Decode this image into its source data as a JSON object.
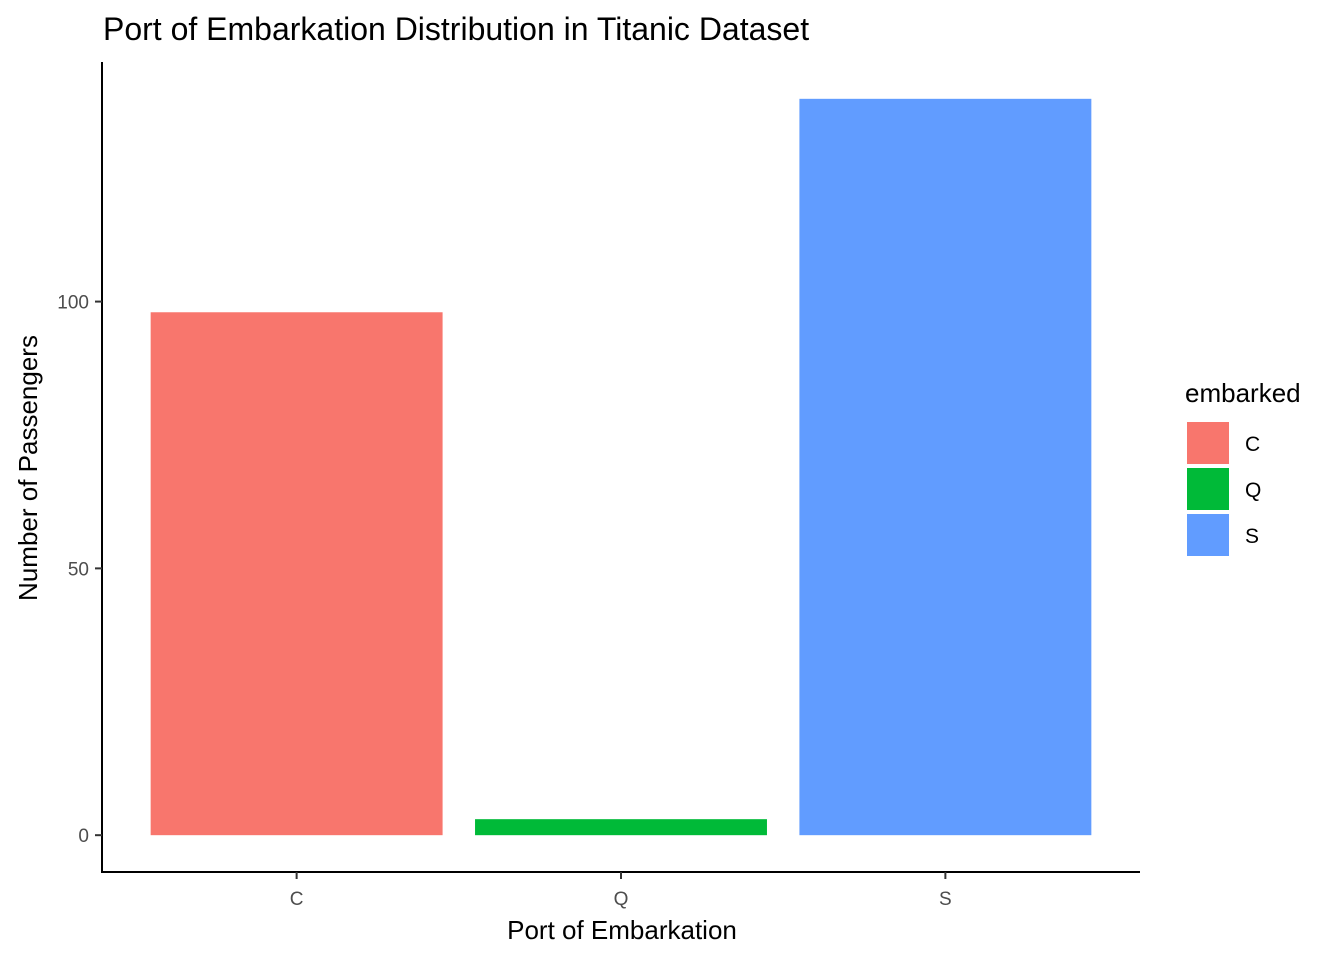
{
  "chart_data": {
    "type": "bar",
    "title": "Port of Embarkation Distribution in Titanic Dataset",
    "xlabel": "Port of Embarkation",
    "ylabel": "Number of Passengers",
    "categories": [
      "C",
      "Q",
      "S"
    ],
    "values": [
      98,
      3,
      138
    ],
    "colors": [
      "#F8766D",
      "#00BA38",
      "#619CFF"
    ],
    "yticks": [
      0,
      50,
      100
    ],
    "ylim": [
      -6.9,
      144.9
    ],
    "grid": false,
    "legend": {
      "title": "embarked",
      "position": "right",
      "entries": [
        {
          "label": "C",
          "color": "#F8766D"
        },
        {
          "label": "Q",
          "color": "#00BA38"
        },
        {
          "label": "S",
          "color": "#619CFF"
        }
      ]
    }
  }
}
